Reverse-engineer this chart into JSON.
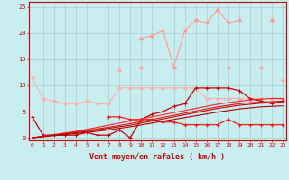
{
  "title": "",
  "xlabel": "Vent moyen/en rafales ( km/h )",
  "background_color": "#c8eef0",
  "grid_color": "#a8cdd0",
  "x": [
    0,
    1,
    2,
    3,
    4,
    5,
    6,
    7,
    8,
    9,
    10,
    11,
    12,
    13,
    14,
    15,
    16,
    17,
    18,
    19,
    20,
    21,
    22,
    23
  ],
  "ylim": [
    -0.5,
    26
  ],
  "xlim": [
    -0.3,
    23.3
  ],
  "series": [
    {
      "y": [
        11.5,
        7.5,
        7.0,
        6.5,
        6.5,
        7.0,
        6.5,
        6.5,
        9.5,
        9.5,
        9.5,
        9.5,
        9.5,
        9.5,
        9.5,
        9.5,
        7.5,
        7.5,
        7.5,
        7.5,
        7.5,
        7.5,
        7.5,
        7.5
      ],
      "color": "#ffb0b0",
      "lw": 0.8,
      "marker": "D",
      "ms": 2.0
    },
    {
      "y": [
        null,
        null,
        null,
        null,
        null,
        null,
        null,
        null,
        null,
        null,
        19.0,
        19.5,
        20.5,
        13.5,
        20.5,
        22.5,
        22.0,
        24.5,
        22.0,
        22.5,
        null,
        null,
        22.5,
        null
      ],
      "color": "#ff9999",
      "lw": 0.8,
      "marker": "D",
      "ms": 2.0
    },
    {
      "y": [
        null,
        null,
        null,
        null,
        null,
        null,
        null,
        null,
        13.0,
        null,
        13.5,
        null,
        null,
        null,
        null,
        null,
        null,
        null,
        13.5,
        null,
        null,
        13.5,
        null,
        11.0
      ],
      "color": "#ffaaaa",
      "lw": 0.8,
      "marker": "D",
      "ms": 2.0
    },
    {
      "y": [
        4.0,
        0.5,
        0.5,
        0.5,
        0.5,
        1.0,
        0.5,
        0.5,
        1.5,
        0.0,
        3.5,
        4.5,
        5.0,
        6.0,
        6.5,
        9.5,
        9.5,
        9.5,
        9.5,
        9.0,
        7.5,
        7.0,
        6.5,
        7.0
      ],
      "color": "#cc0000",
      "lw": 0.9,
      "marker": "+",
      "ms": 3.0
    },
    {
      "y": [
        null,
        null,
        null,
        null,
        null,
        null,
        null,
        4.0,
        4.0,
        3.5,
        3.5,
        3.5,
        3.0,
        3.0,
        2.5,
        2.5,
        2.5,
        2.5,
        3.5,
        2.5,
        2.5,
        2.5,
        2.5,
        2.5
      ],
      "color": "#ee2222",
      "lw": 0.9,
      "marker": "+",
      "ms": 3.0
    },
    {
      "y": [
        0.0,
        0.3,
        0.6,
        0.9,
        1.2,
        1.6,
        2.0,
        2.4,
        2.8,
        3.2,
        3.6,
        4.0,
        4.4,
        4.8,
        5.2,
        5.6,
        6.0,
        6.4,
        6.7,
        7.0,
        7.2,
        7.4,
        7.5,
        7.5
      ],
      "color": "#ff2222",
      "lw": 0.8,
      "marker": null,
      "ms": 0
    },
    {
      "y": [
        0.0,
        0.28,
        0.56,
        0.84,
        1.12,
        1.4,
        1.7,
        2.0,
        2.35,
        2.7,
        3.1,
        3.5,
        3.9,
        4.3,
        4.7,
        5.1,
        5.5,
        5.9,
        6.2,
        6.5,
        6.7,
        6.8,
        6.9,
        7.0
      ],
      "color": "#dd1111",
      "lw": 0.8,
      "marker": null,
      "ms": 0
    },
    {
      "y": [
        0.0,
        0.24,
        0.48,
        0.72,
        0.96,
        1.2,
        1.5,
        1.8,
        2.1,
        2.4,
        2.8,
        3.2,
        3.6,
        4.0,
        4.4,
        4.8,
        5.2,
        5.6,
        5.9,
        6.2,
        6.4,
        6.6,
        6.7,
        6.8
      ],
      "color": "#cc0000",
      "lw": 0.8,
      "marker": null,
      "ms": 0
    },
    {
      "y": [
        0.0,
        0.2,
        0.4,
        0.6,
        0.8,
        1.0,
        1.25,
        1.5,
        1.8,
        2.1,
        2.45,
        2.8,
        3.15,
        3.5,
        3.85,
        4.2,
        4.55,
        4.9,
        5.2,
        5.5,
        5.7,
        5.9,
        6.0,
        6.1
      ],
      "color": "#aa0000",
      "lw": 0.8,
      "marker": null,
      "ms": 0
    }
  ],
  "yticks": [
    0,
    5,
    10,
    15,
    20,
    25
  ],
  "xticks": [
    0,
    1,
    2,
    3,
    4,
    5,
    6,
    7,
    8,
    9,
    10,
    11,
    12,
    13,
    14,
    15,
    16,
    17,
    18,
    19,
    20,
    21,
    22,
    23
  ],
  "tick_color": "#cc0000",
  "label_color": "#cc0000",
  "axis_color": "#cc0000"
}
